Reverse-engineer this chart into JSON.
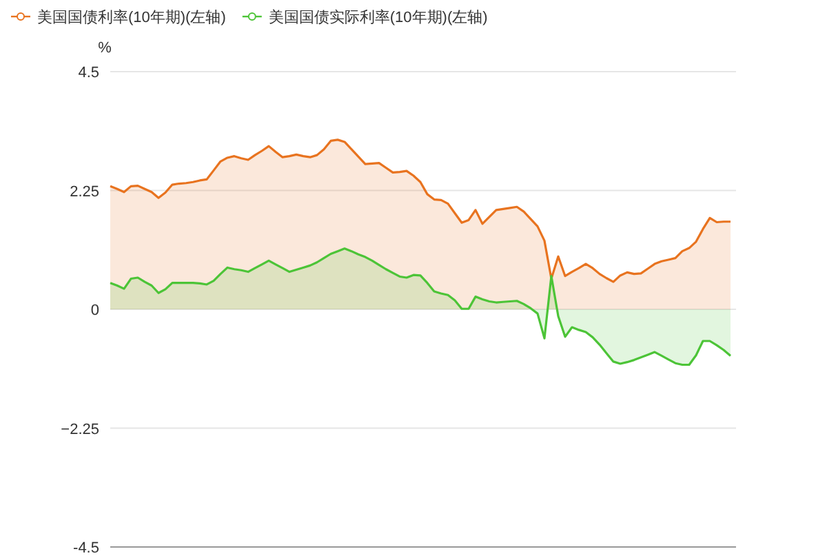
{
  "chart_data": {
    "type": "area",
    "ylabel": "%",
    "ylim": [
      -4.5,
      4.5
    ],
    "yticks": [
      -4.5,
      {
        "value": -2.25,
        "label": "−2.25"
      },
      0,
      2.25,
      4.5
    ],
    "tick_labels": "y",
    "grid": "y",
    "legend": "top left",
    "categories": [
      null,
      null,
      null,
      null,
      null,
      null,
      null,
      null,
      null,
      null,
      null,
      null,
      null,
      null,
      null,
      null,
      null,
      null,
      null,
      null,
      null,
      null,
      null,
      null,
      null,
      null,
      null,
      null,
      null,
      null,
      null,
      null,
      null,
      null,
      null,
      null,
      null,
      null,
      null,
      null,
      null,
      null,
      null,
      null,
      null,
      null,
      null,
      null,
      null,
      null,
      null,
      null,
      null,
      null,
      null,
      null,
      null,
      null,
      null,
      null,
      null,
      null,
      null,
      null,
      null,
      null,
      null,
      null,
      null,
      null,
      null,
      null,
      null,
      null,
      null,
      null,
      null,
      null,
      null,
      null,
      null,
      null,
      null,
      null,
      null,
      null,
      null,
      null,
      null,
      null,
      null
    ],
    "series": [
      {
        "name": "美国国债利率(10年期)(左轴)",
        "color": "#e8731f",
        "values": [
          2.33,
          2.28,
          2.22,
          2.33,
          2.34,
          2.28,
          2.22,
          2.11,
          2.21,
          2.36,
          2.38,
          2.39,
          2.41,
          2.44,
          2.46,
          2.63,
          2.8,
          2.87,
          2.9,
          2.86,
          2.83,
          2.92,
          3.0,
          3.09,
          2.98,
          2.88,
          2.9,
          2.93,
          2.9,
          2.88,
          2.92,
          3.03,
          3.19,
          3.21,
          3.17,
          3.03,
          2.89,
          2.75,
          2.76,
          2.77,
          2.68,
          2.59,
          2.6,
          2.62,
          2.53,
          2.41,
          2.18,
          2.08,
          2.07,
          2.0,
          1.82,
          1.64,
          1.69,
          1.88,
          1.62,
          1.75,
          1.88,
          1.9,
          1.92,
          1.94,
          1.85,
          1.71,
          1.57,
          1.3,
          0.58,
          1.0,
          0.63,
          0.71,
          0.78,
          0.86,
          0.78,
          0.67,
          0.59,
          0.52,
          0.64,
          0.7,
          0.67,
          0.68,
          0.77,
          0.86,
          0.91,
          0.94,
          0.97,
          1.1,
          1.16,
          1.28,
          1.52,
          1.73,
          1.65,
          1.66,
          1.66
        ]
      },
      {
        "name": "美国国债实际利率(10年期)(左轴)",
        "color": "#4cc437",
        "values": [
          0.5,
          0.45,
          0.39,
          0.58,
          0.6,
          0.52,
          0.45,
          0.31,
          0.38,
          0.5,
          0.5,
          0.5,
          0.5,
          0.49,
          0.47,
          0.54,
          0.67,
          0.79,
          0.76,
          0.74,
          0.71,
          0.78,
          0.85,
          0.92,
          0.85,
          0.78,
          0.71,
          0.75,
          0.79,
          0.83,
          0.89,
          0.97,
          1.05,
          1.1,
          1.15,
          1.1,
          1.04,
          0.99,
          0.92,
          0.84,
          0.76,
          0.69,
          0.62,
          0.6,
          0.65,
          0.64,
          0.5,
          0.34,
          0.3,
          0.27,
          0.17,
          0.01,
          0.01,
          0.24,
          0.19,
          0.15,
          0.13,
          0.14,
          0.15,
          0.16,
          0.1,
          0.02,
          -0.08,
          -0.55,
          0.63,
          -0.13,
          -0.52,
          -0.34,
          -0.39,
          -0.43,
          -0.53,
          -0.67,
          -0.83,
          -0.99,
          -1.03,
          -1.0,
          -0.96,
          -0.91,
          -0.86,
          -0.81,
          -0.88,
          -0.95,
          -1.02,
          -1.05,
          -1.05,
          -0.87,
          -0.6,
          -0.6,
          -0.68,
          -0.77,
          -0.88
        ]
      }
    ]
  }
}
